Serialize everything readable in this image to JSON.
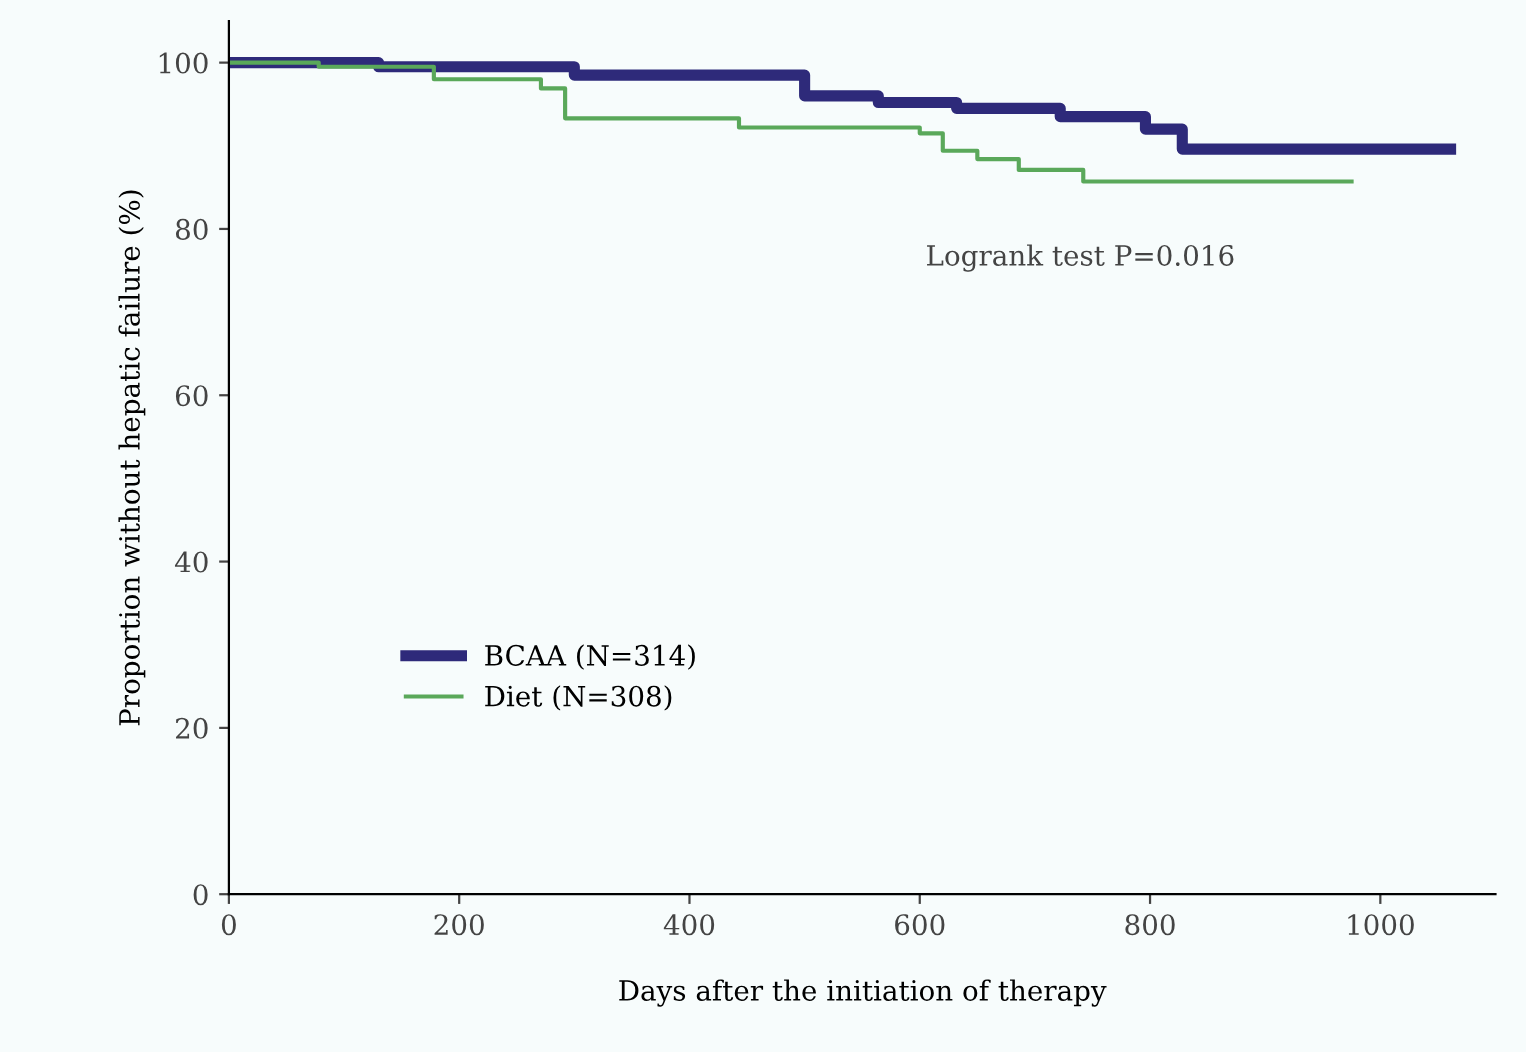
{
  "chart_data": {
    "type": "step",
    "xlabel": "Days after the initiation of therapy",
    "ylabel": "Proportion without hepatic failure (%)",
    "annotations": [
      "Logrank test P=0.016"
    ],
    "series": [
      {
        "name": "BCAA (N=314)",
        "color": "#2e2a7a",
        "x": [
          0,
          130,
          300,
          500,
          564,
          632,
          722,
          796,
          828,
          1061
        ],
        "values": [
          100,
          99.5,
          98.5,
          96,
          95.2,
          94.5,
          93.5,
          92,
          89.6,
          89.6
        ]
      },
      {
        "name": "Diet (N=308)",
        "color": "#5aa85a",
        "x": [
          0,
          78,
          178,
          271,
          292,
          443,
          600,
          620,
          650,
          686,
          742,
          975
        ],
        "values": [
          100,
          99.5,
          98,
          96.9,
          93.3,
          92.2,
          91.5,
          89.4,
          88.4,
          87.1,
          85.7,
          85.7
        ]
      }
    ],
    "xlim": [
      0,
      1100
    ],
    "ylim": [
      0,
      105
    ],
    "xticks": [
      0,
      200,
      400,
      600,
      800,
      1000
    ],
    "yticks": [
      0,
      20,
      40,
      60,
      80,
      100
    ],
    "grid": false,
    "legend": "lower left"
  }
}
